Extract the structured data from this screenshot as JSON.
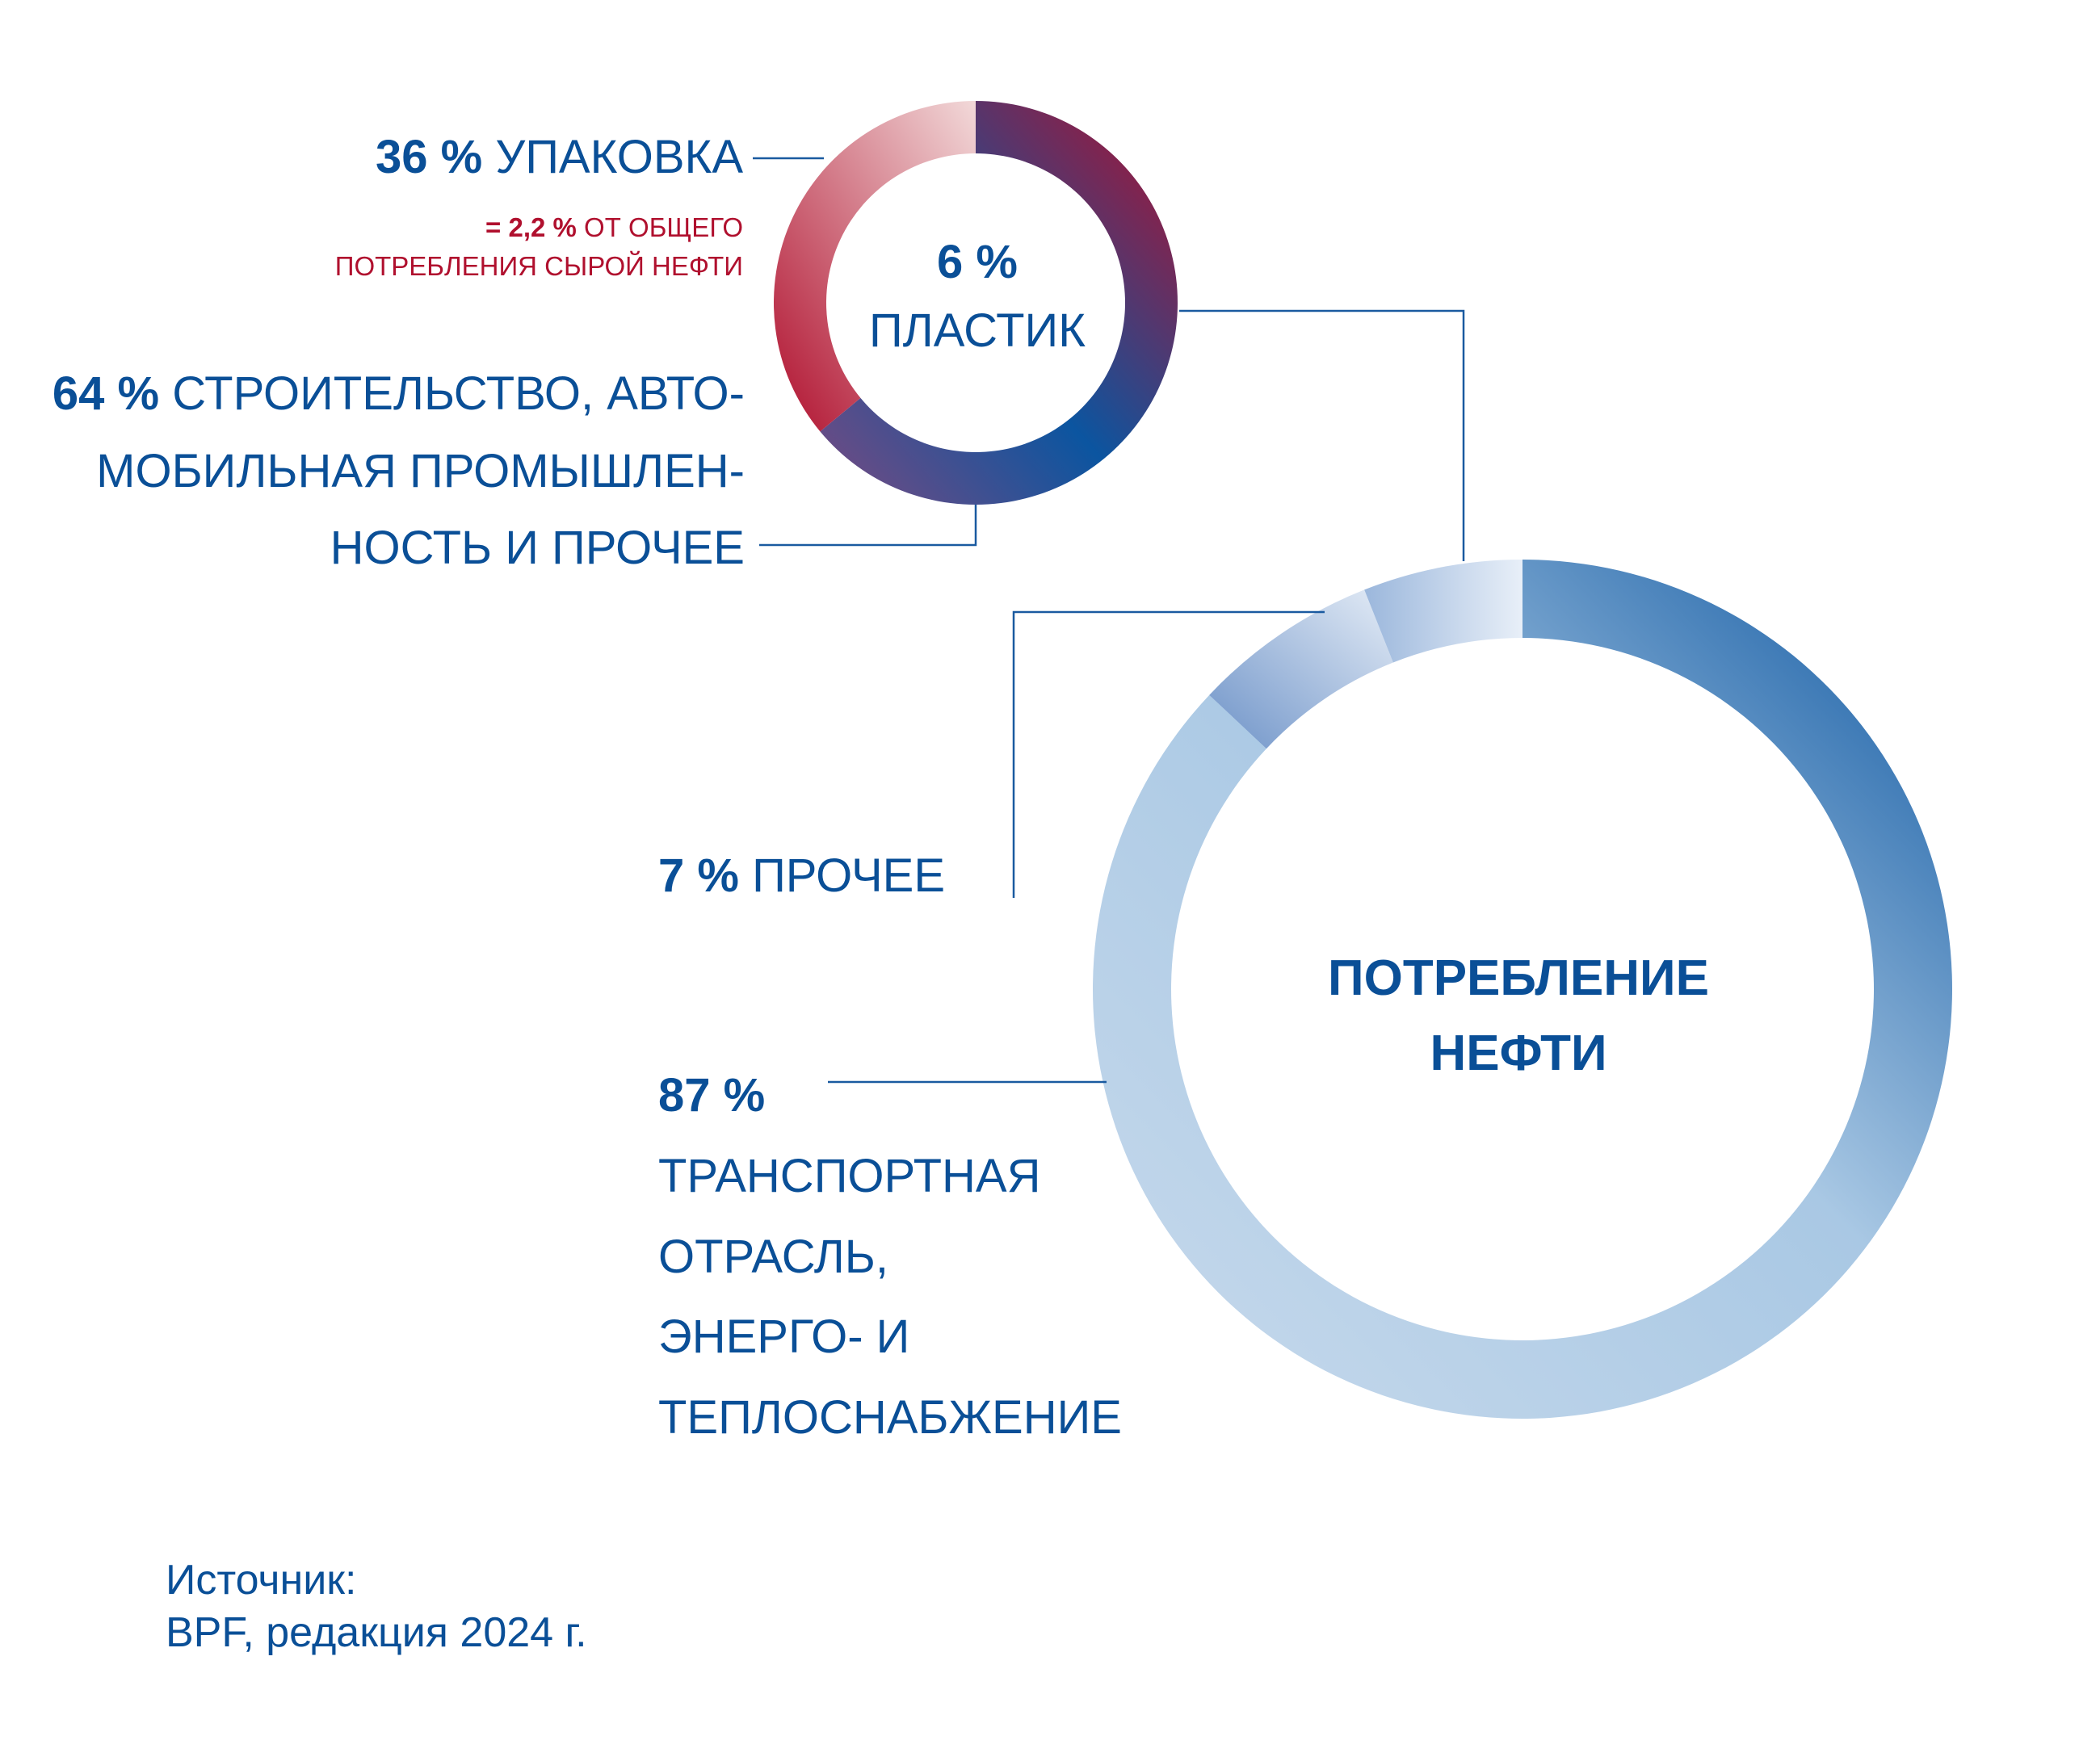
{
  "colors": {
    "brand_blue": "#0a4f97",
    "brand_red": "#b0102e",
    "line": "#1a5aa0"
  },
  "small_donut": {
    "center_value": "6 %",
    "center_label": "ПЛАСТИК",
    "segments": [
      {
        "pct": "36 %",
        "label": "УПАКОВКА",
        "value": 36
      },
      {
        "pct": "64 %",
        "label_lines": [
          "СТРОИТЕЛЬСТВО, АВТО-",
          "МОБИЛЬНАЯ ПРОМЫШЛЕН-",
          "НОСТЬ И ПРОЧЕЕ"
        ],
        "value": 64
      }
    ],
    "note": {
      "prefix": "=",
      "pct": "2,2 %",
      "line1": "ОТ ОБЩЕГО",
      "line2": "ПОТРЕБЛЕНИЯ СЫРОЙ НЕФТИ"
    }
  },
  "big_donut": {
    "center_lines": [
      "ПОТРЕБЛЕНИЕ",
      "НЕФТИ"
    ],
    "segments": [
      {
        "pct": "87 %",
        "label_lines": [
          "ТРАНСПОРТНАЯ",
          "ОТРАСЛЬ,",
          "ЭНЕРГО- И",
          "ТЕПЛОСНАБЖЕНИЕ"
        ],
        "value": 87
      },
      {
        "pct": "7 %",
        "label": "ПРОЧЕЕ",
        "value": 7
      },
      {
        "pct": "6 %",
        "label": "ПЛАСТИК",
        "value": 6
      }
    ]
  },
  "chart_data": [
    {
      "type": "pie",
      "title": "",
      "center_label": "6 % ПЛАСТИК",
      "categories": [
        "УПАКОВКА",
        "СТРОИТЕЛЬСТВО, АВТОМОБИЛЬНАЯ ПРОМЫШЛЕННОСТЬ И ПРОЧЕЕ"
      ],
      "values": [
        36,
        64
      ]
    },
    {
      "type": "pie",
      "title": "",
      "center_label": "ПОТРЕБЛЕНИЕ НЕФТИ",
      "categories": [
        "ТРАНСПОРТНАЯ ОТРАСЛЬ, ЭНЕРГО- И ТЕПЛОСНАБЖЕНИЕ",
        "ПРОЧЕЕ",
        "ПЛАСТИК"
      ],
      "values": [
        87,
        7,
        6
      ]
    }
  ],
  "source": {
    "line1": "Источник:",
    "line2": "BPF, редакция 2024 г."
  }
}
